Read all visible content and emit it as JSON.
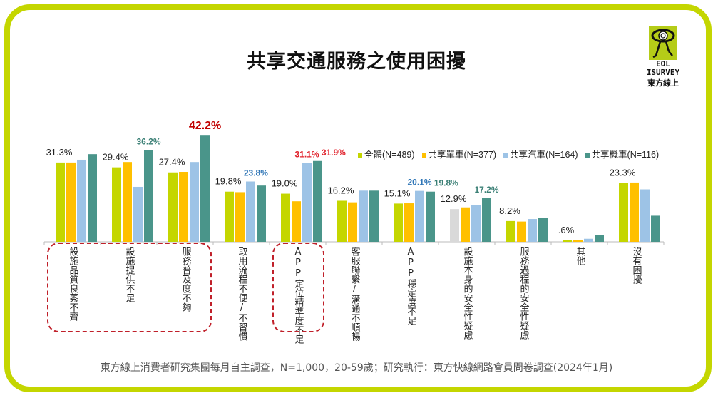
{
  "title": "共享交通服務之使用困擾",
  "logo": {
    "line1": "EOL",
    "line2": "ISURVEY",
    "line3": "東方線上"
  },
  "footer": "東方線上消費者研究集團每月自主調查，N=1,000，20-59歲；研究執行：東方快線網路會員問卷調查(2024年1月)",
  "colors": {
    "frame": "#c4d600",
    "all": "#c4d600",
    "bike": "#ffc000",
    "car": "#9dc3e6",
    "scooter": "#4a958a",
    "highlight_red": "#c00000",
    "highlight_blue": "#2e75b6",
    "highlight_teal": "#3a7f75"
  },
  "chart_data": {
    "type": "bar",
    "title": "共享交通服務之使用困擾",
    "xlabel": "",
    "ylabel": "",
    "ylim": [
      0,
      45
    ],
    "grid": false,
    "legend_position": "top-right",
    "categories": [
      "設施品質良莠不齊",
      "設施提供不足",
      "服務普及度不夠",
      "取用流程不便/不習慣",
      "APP定位精準度不足",
      "客服聯繫/溝通不順暢",
      "APP穩定度不足",
      "設施本身的安全性疑慮",
      "服務過程的安全性疑慮",
      "其他",
      "沒有困擾"
    ],
    "series": [
      {
        "name": "全體(N=489)",
        "values": [
          31.3,
          29.4,
          27.4,
          19.8,
          19.0,
          16.2,
          15.1,
          12.9,
          8.2,
          0.6,
          23.3
        ]
      },
      {
        "name": "共享單車(N=377)",
        "values": [
          31.3,
          31.5,
          27.6,
          19.6,
          16.0,
          15.6,
          15.2,
          13.6,
          8.0,
          0.6,
          23.4
        ]
      },
      {
        "name": "共享汽車(N=164)",
        "values": [
          32.4,
          21.7,
          31.5,
          23.8,
          31.1,
          20.2,
          20.1,
          14.6,
          9.0,
          1.2,
          20.7
        ]
      },
      {
        "name": "共享機車(N=116)",
        "values": [
          34.6,
          36.2,
          42.2,
          22.2,
          31.9,
          20.2,
          19.8,
          17.2,
          9.3,
          2.6,
          10.3
        ]
      }
    ],
    "data_labels": [
      {
        "category": 0,
        "series": 0,
        "text": "31.3%",
        "style": "normal"
      },
      {
        "category": 1,
        "series": 0,
        "text": "29.4%",
        "style": "normal"
      },
      {
        "category": 1,
        "series": 3,
        "text": "36.2%",
        "style": "teal"
      },
      {
        "category": 2,
        "series": 0,
        "text": "27.4%",
        "style": "normal"
      },
      {
        "category": 2,
        "series": 3,
        "text": "42.2%",
        "style": "red-large"
      },
      {
        "category": 3,
        "series": 0,
        "text": "19.8%",
        "style": "normal"
      },
      {
        "category": 3,
        "series": 2,
        "text": "23.8%",
        "style": "blue"
      },
      {
        "category": 4,
        "series": 0,
        "text": "19.0%",
        "style": "normal"
      },
      {
        "category": 4,
        "series": 2,
        "text": "31.1%",
        "style": "red"
      },
      {
        "category": 4,
        "series": 3,
        "text": "31.9%",
        "style": "red"
      },
      {
        "category": 5,
        "series": 0,
        "text": "16.2%",
        "style": "normal"
      },
      {
        "category": 6,
        "series": 0,
        "text": "15.1%",
        "style": "normal"
      },
      {
        "category": 6,
        "series": 2,
        "text": "20.1%",
        "style": "blue"
      },
      {
        "category": 6,
        "series": 3,
        "text": "19.8%",
        "style": "teal"
      },
      {
        "category": 7,
        "series": 0,
        "text": "12.9%",
        "style": "normal"
      },
      {
        "category": 7,
        "series": 3,
        "text": "17.2%",
        "style": "teal"
      },
      {
        "category": 8,
        "series": 0,
        "text": "8.2%",
        "style": "normal"
      },
      {
        "category": 9,
        "series": 0,
        "text": ".6%",
        "style": "normal"
      },
      {
        "category": 10,
        "series": 0,
        "text": "23.3%",
        "style": "normal"
      }
    ],
    "highlighted_groups": [
      [
        0,
        2
      ],
      [
        4,
        4
      ]
    ]
  }
}
